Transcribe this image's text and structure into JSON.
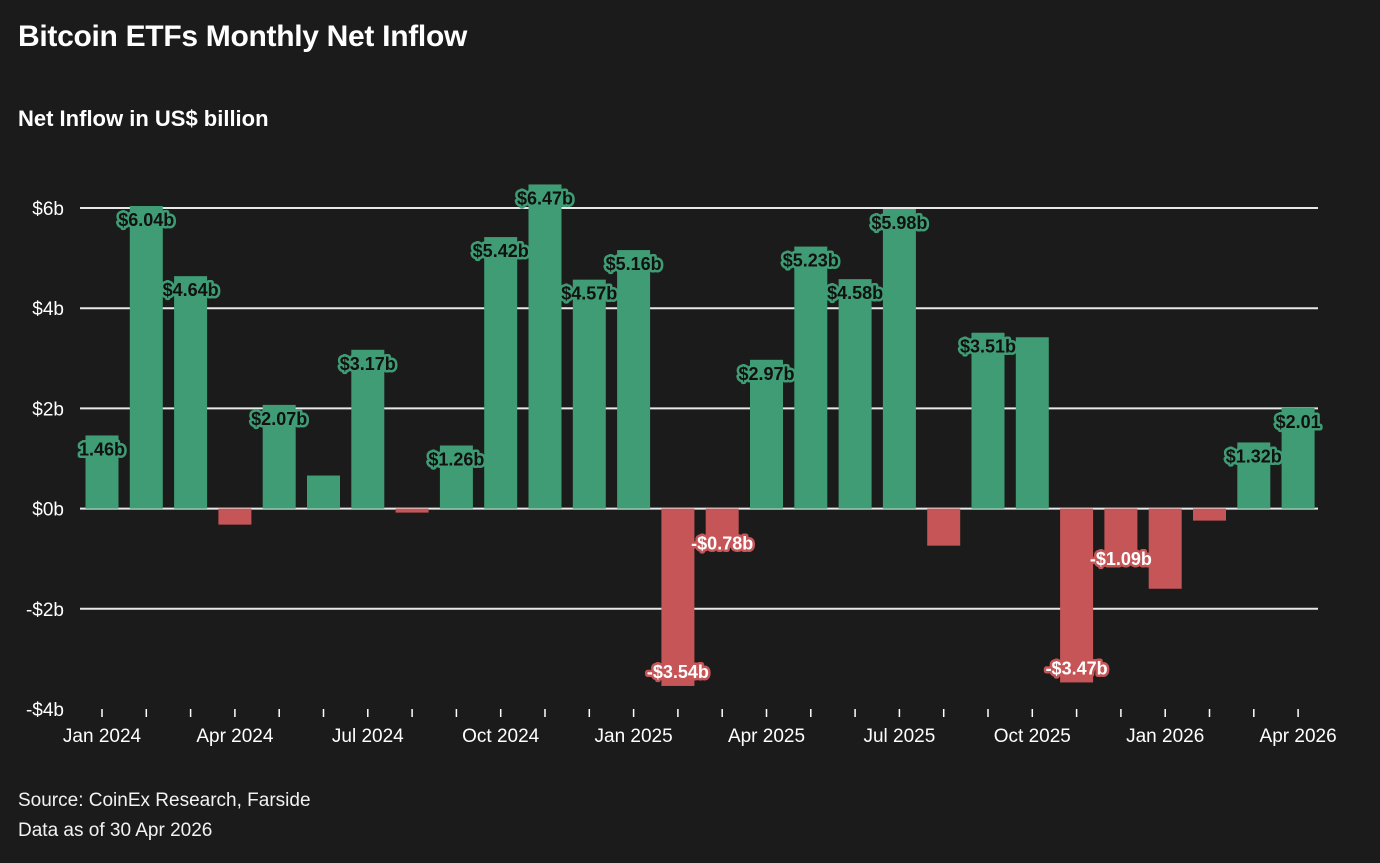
{
  "title": "Bitcoin ETFs Monthly Net Inflow",
  "subtitle": "Net Inflow in US$ billion",
  "source": "Source: CoinEx Research, Farside",
  "data_as_of": "Data as of 30 Apr 2026",
  "colors": {
    "background": "#1b1b1b",
    "positive": "#3f9c74",
    "negative": "#c65557",
    "grid": "#e8e8e8",
    "positive_label_halo": "#3f9c74",
    "negative_label_halo": "#c65557"
  },
  "chart_data": {
    "type": "bar",
    "title": "Bitcoin ETFs Monthly Net Inflow",
    "ylabel": "Net Inflow in US$ billion",
    "ylim": [
      -4,
      6
    ],
    "yticks": [
      -4,
      -2,
      0,
      2,
      4,
      6
    ],
    "ytick_labels": [
      "-$4b",
      "-$2b",
      "$0b",
      "$2b",
      "$4b",
      "$6b"
    ],
    "xtick_labels": [
      "Jan 2024",
      "Apr 2024",
      "Jul 2024",
      "Oct 2024",
      "Jan 2025",
      "Apr 2025",
      "Jul 2025",
      "Oct 2025",
      "Jan 2026",
      "Apr 2026"
    ],
    "grid": "horizontal",
    "categories": [
      "Jan 2024",
      "Feb 2024",
      "Mar 2024",
      "Apr 2024",
      "May 2024",
      "Jun 2024",
      "Jul 2024",
      "Aug 2024",
      "Sep 2024",
      "Oct 2024",
      "Nov 2024",
      "Dec 2024",
      "Jan 2025",
      "Feb 2025",
      "Mar 2025",
      "Apr 2025",
      "May 2025",
      "Jun 2025",
      "Jul 2025",
      "Aug 2025",
      "Sep 2025",
      "Oct 2025",
      "Nov 2025",
      "Dec 2025",
      "Jan 2026",
      "Feb 2026",
      "Mar 2026",
      "Apr 2026"
    ],
    "values": [
      1.46,
      6.04,
      4.64,
      -0.32,
      2.07,
      0.66,
      3.17,
      -0.08,
      1.26,
      5.42,
      6.47,
      4.57,
      5.16,
      -3.54,
      -0.78,
      2.97,
      5.23,
      4.58,
      5.98,
      -0.74,
      3.51,
      3.42,
      -3.47,
      -1.09,
      -1.6,
      -0.24,
      1.32,
      2.01
    ],
    "data_labels": [
      "1.46b",
      "$6.04b",
      "$4.64b",
      null,
      "$2.07b",
      null,
      "$3.17b",
      null,
      "$1.26b",
      "$5.42b",
      "$6.47b",
      "$4.57b",
      "$5.16b",
      "-$3.54b",
      "-$0.78b",
      "$2.97b",
      "$5.23b",
      "$4.58b",
      "$5.98b",
      null,
      "$3.51b",
      null,
      "-$3.47b",
      "-$1.09b",
      null,
      null,
      "$1.32b",
      "$2.01"
    ]
  }
}
